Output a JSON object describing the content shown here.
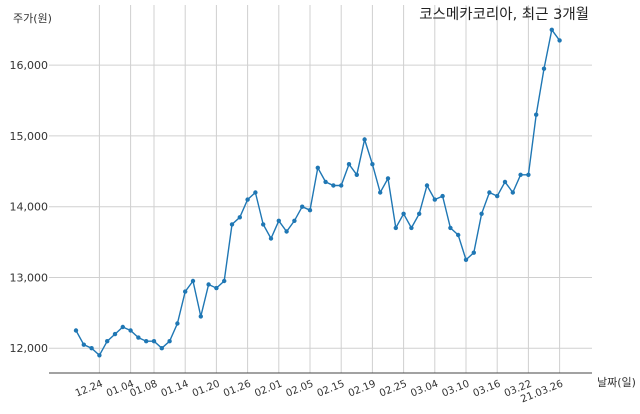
{
  "chart_data": {
    "type": "line",
    "title": "코스메카코리아, 최근 3개월",
    "ylabel": "주가(원)",
    "xlabel": "날짜(일)",
    "ylim": [
      11650,
      16850
    ],
    "y_ticks": [
      12000,
      13000,
      14000,
      15000,
      16000
    ],
    "y_tick_labels": [
      "12,000",
      "13,000",
      "14,000",
      "15,000",
      "16,000"
    ],
    "grid": true,
    "line_color": "#1f77b4",
    "x_tick_labels": [
      "12.24",
      "01.04",
      "01.08",
      "01.14",
      "01.20",
      "01.26",
      "02.01",
      "02.05",
      "02.15",
      "02.19",
      "02.25",
      "03.04",
      "03.10",
      "03.16",
      "03.22",
      "21.03.26"
    ],
    "x_tick_positions": [
      3,
      7,
      10,
      14,
      18,
      22,
      26,
      30,
      34,
      38,
      42,
      46,
      50,
      54,
      58,
      62
    ],
    "series": [
      {
        "values": [
          12250,
          12050,
          12000,
          11900,
          12100,
          12200,
          12300,
          12250,
          12150,
          12100,
          12100,
          12000,
          12100,
          12350,
          12800,
          12950,
          12450,
          12900,
          12850,
          12950,
          13750,
          13850,
          14100,
          14200,
          13750,
          13550,
          13800,
          13650,
          13800,
          14000,
          13950,
          14550,
          14350,
          14300,
          14300,
          14600,
          14450,
          14950,
          14600,
          14200,
          14400,
          13700,
          13900,
          13700,
          13900,
          14300,
          14100,
          14150,
          13700,
          13600,
          13250,
          13350,
          13900,
          14200,
          14150,
          14350,
          14200,
          14450,
          14450,
          15300,
          15950,
          16500,
          16350
        ]
      }
    ]
  }
}
